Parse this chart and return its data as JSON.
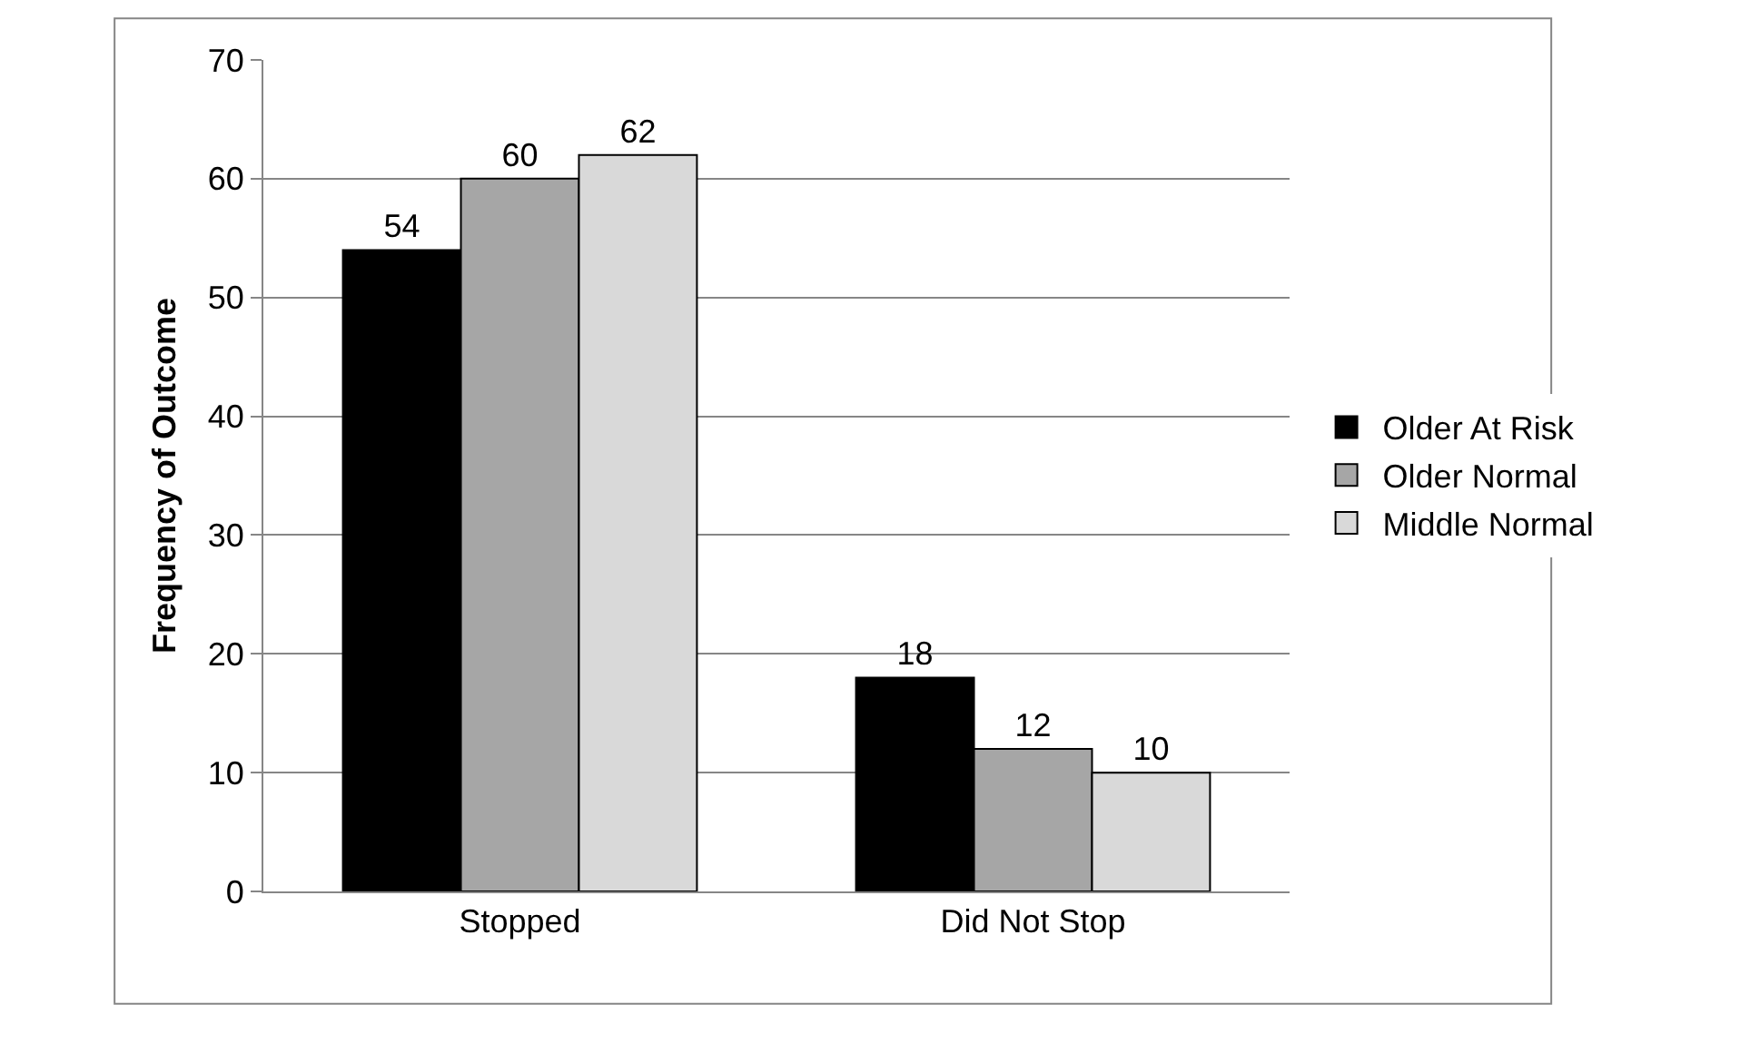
{
  "chart_data": {
    "type": "bar",
    "ylabel": "Frequency of Outcome",
    "categories": [
      "Stopped",
      "Did Not Stop"
    ],
    "series": [
      {
        "name": "Older At Risk",
        "color": "#000000",
        "values": [
          54,
          18
        ]
      },
      {
        "name": "Older Normal",
        "color": "#a6a6a6",
        "values": [
          60,
          12
        ]
      },
      {
        "name": "Middle Normal",
        "color": "#d9d9d9",
        "values": [
          62,
          10
        ]
      }
    ],
    "ylim": [
      0,
      70
    ],
    "yticks": [
      0,
      10,
      20,
      30,
      40,
      50,
      60,
      70
    ],
    "grid": "y",
    "legend": "right",
    "data_labels": true
  }
}
